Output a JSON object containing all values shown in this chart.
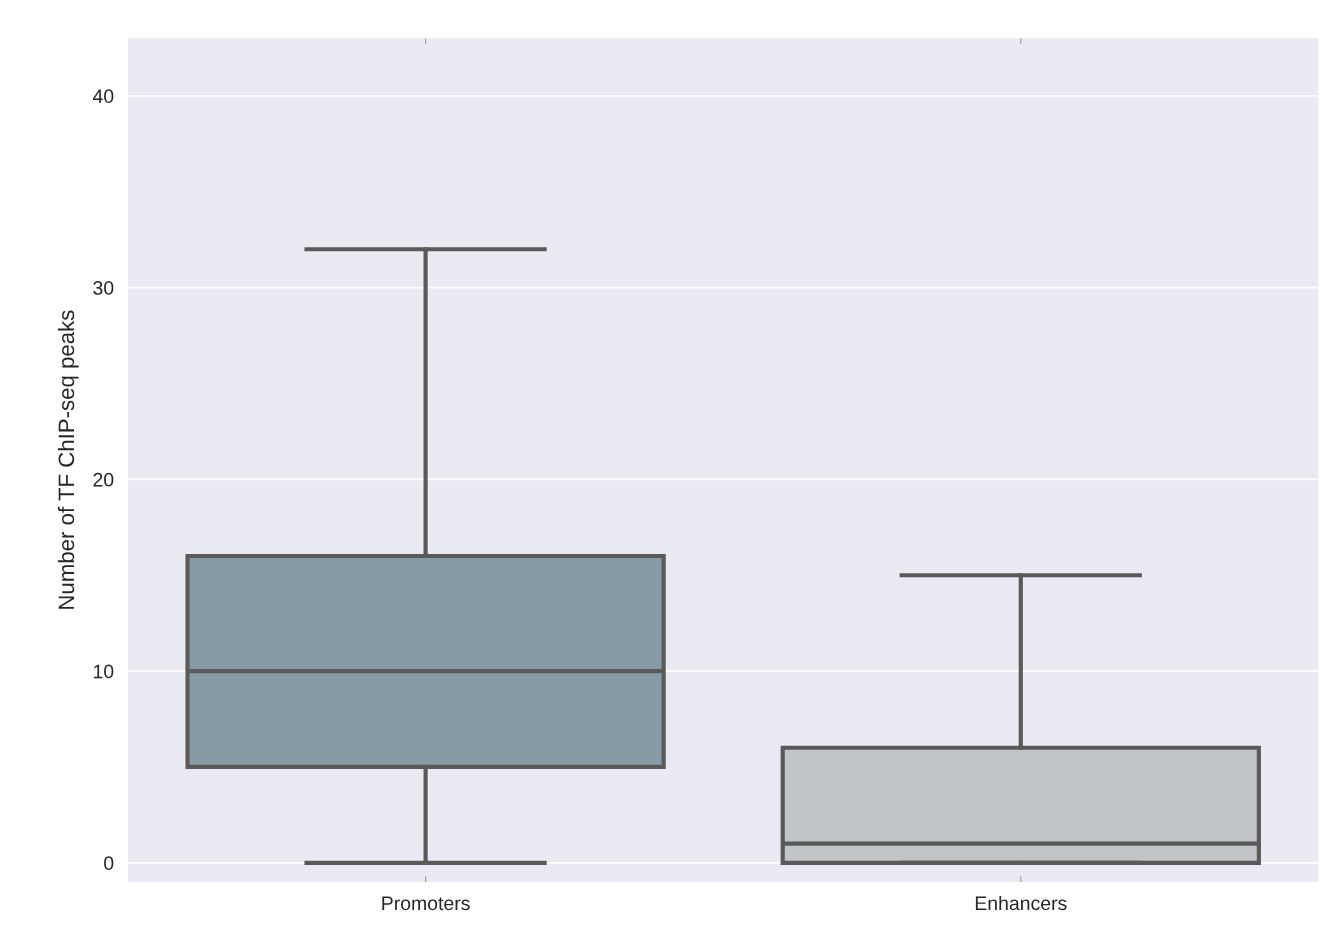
{
  "chart_data": {
    "type": "box",
    "ylabel": "Number of TF ChIP-seq peaks",
    "categories": [
      "Promoters",
      "Enhancers"
    ],
    "colors": [
      "#869ba5",
      "#c1c5c7"
    ],
    "boxes": [
      {
        "low": 0,
        "q1": 5,
        "median": 10,
        "q3": 16,
        "high": 32
      },
      {
        "low": 0,
        "q1": 0,
        "median": 1,
        "q3": 6,
        "high": 15
      }
    ],
    "ylim": [
      -1,
      43
    ],
    "yticks": [
      0,
      10,
      20,
      30,
      40
    ],
    "grid": "y"
  }
}
